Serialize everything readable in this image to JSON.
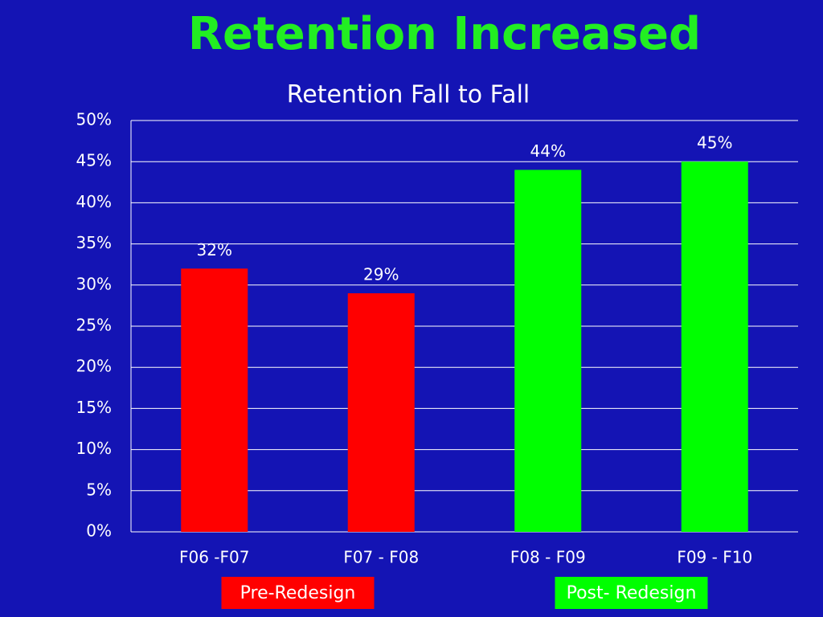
{
  "chart_data": {
    "type": "bar",
    "title": "Retention Increased",
    "subtitle": "Retention Fall to Fall",
    "categories": [
      "F06 -F07",
      "F07 - F08",
      "F08 - F09",
      "F09 - F10"
    ],
    "values": [
      32,
      29,
      44,
      45
    ],
    "value_labels": [
      "32%",
      "29%",
      "44%",
      "45%"
    ],
    "colors": [
      "#ff0000",
      "#ff0000",
      "#00ff00",
      "#00ff00"
    ],
    "ylim": [
      0,
      50
    ],
    "yticks": [
      {
        "value": 0,
        "label": "0%"
      },
      {
        "value": 5,
        "label": "5%"
      },
      {
        "value": 10,
        "label": "10%"
      },
      {
        "value": 15,
        "label": "15%"
      },
      {
        "value": 20,
        "label": "20%"
      },
      {
        "value": 25,
        "label": "25%"
      },
      {
        "value": 30,
        "label": "30%"
      },
      {
        "value": 35,
        "label": "35%"
      },
      {
        "value": 40,
        "label": "40%"
      },
      {
        "value": 45,
        "label": "45%"
      },
      {
        "value": 50,
        "label": "50%"
      }
    ],
    "grid": true,
    "annotations": [
      {
        "text": "Pre-Redesign",
        "color": "#ff0000"
      },
      {
        "text": "Post- Redesign",
        "color": "#00ff00"
      }
    ]
  }
}
